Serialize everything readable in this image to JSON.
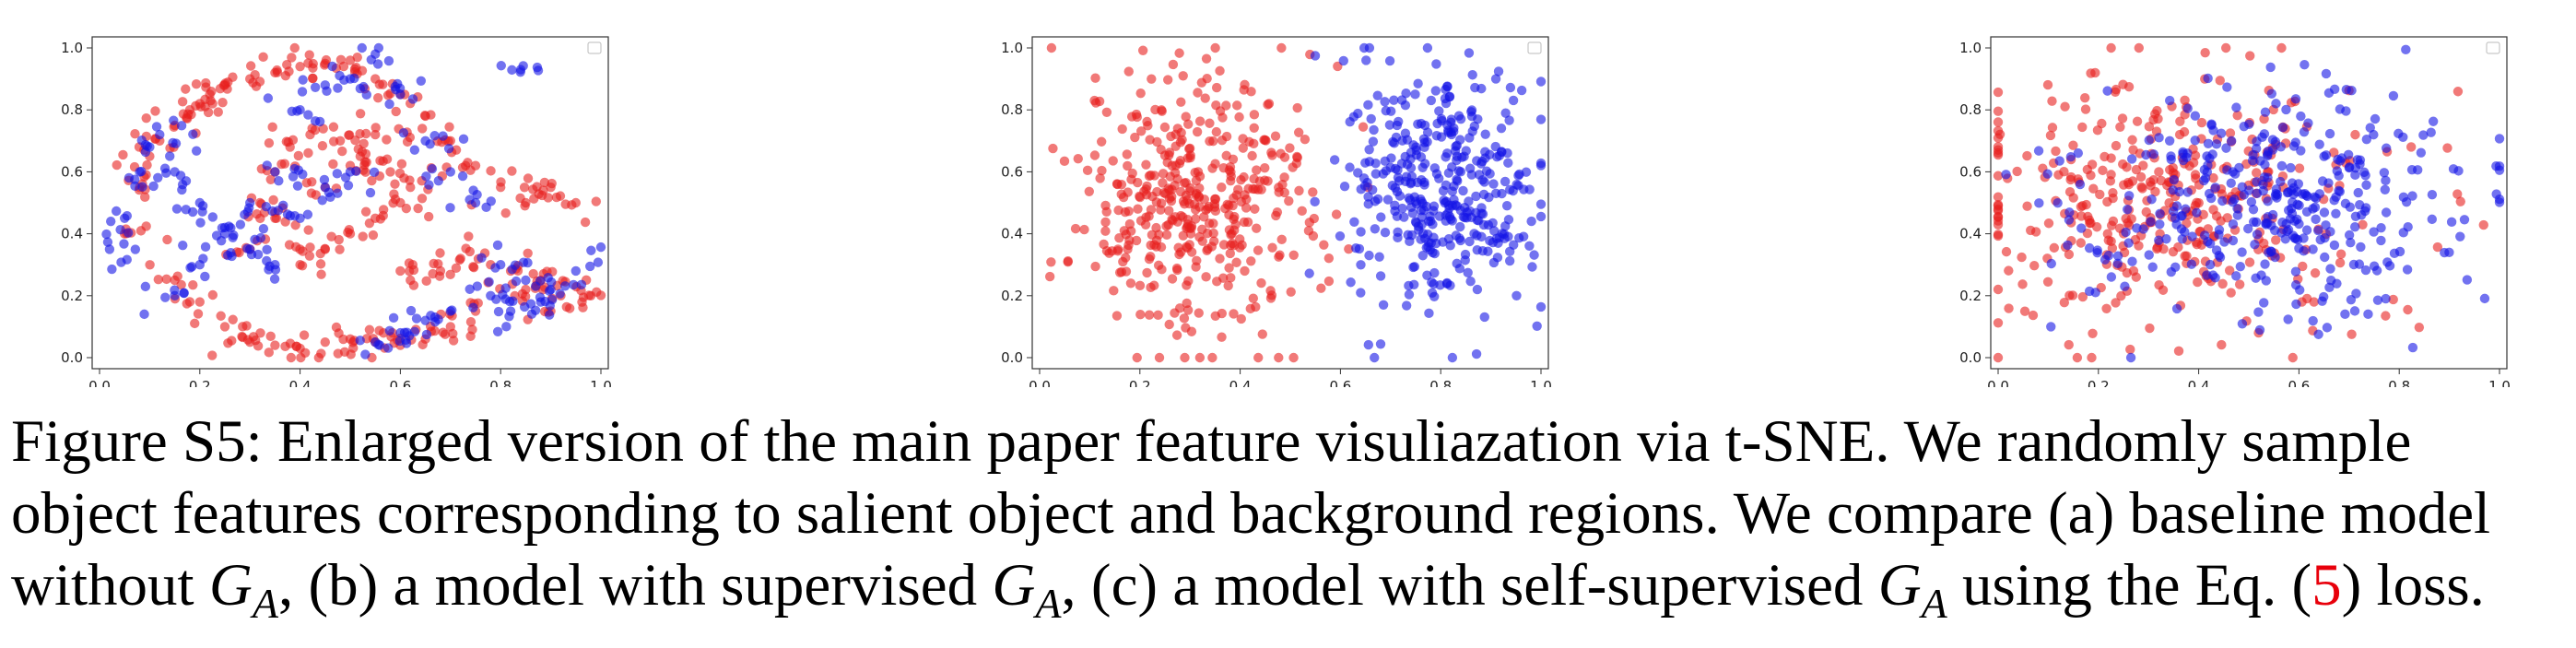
{
  "caption": {
    "label": "Figure S5:",
    "line1_rest": "Enlarged version of the main paper feature visuliazation via t-SNE. We randomly sample",
    "line2": "object features corresponding to salient object and background regions. We compare (a) baseline model",
    "line3_a": "without",
    "line3_b": ", (b) a model with supervised",
    "line3_c": ", (c) a model with self-supervised",
    "line3_d": "using the Eq. (",
    "line3_ref": "5",
    "line3_e": ") loss.",
    "symbol_main": "G",
    "symbol_sub": "A"
  },
  "colors": {
    "object": "#e8201e",
    "background": "#1414e6"
  },
  "chart_data": [
    {
      "type": "scatter",
      "panel": "(a)",
      "xlim": [
        0.0,
        1.0
      ],
      "ylim": [
        0.0,
        1.0
      ],
      "xticks": [
        "0.0",
        "0.2",
        "0.4",
        "0.6",
        "0.8",
        "1.0"
      ],
      "yticks": [
        "0.0",
        "0.2",
        "0.4",
        "0.6",
        "0.8",
        "1.0"
      ],
      "legend": "top-right (empty)",
      "series": [
        {
          "color": "#e8201e",
          "x": [
            0.05,
            0.08,
            0.1,
            0.12,
            0.15,
            0.18,
            0.2,
            0.22,
            0.25,
            0.3,
            0.35,
            0.4,
            0.45,
            0.5,
            0.55,
            0.6,
            0.65,
            0.7,
            0.75,
            0.8,
            0.85,
            0.9,
            0.95,
            0.98,
            0.3,
            0.35,
            0.4,
            0.45,
            0.5,
            0.55,
            0.6,
            0.65,
            0.7,
            0.75,
            0.25,
            0.2,
            0.15,
            0.4,
            0.45,
            0.5,
            0.55,
            0.6,
            0.62,
            0.58,
            0.52,
            0.48,
            0.42,
            0.38,
            0.35,
            0.32,
            0.88,
            0.92,
            0.9,
            0.85,
            0.82,
            0.78,
            0.72,
            0.68,
            0.62,
            0.3,
            0.35,
            0.45,
            0.5,
            0.55
          ],
          "y": [
            0.4,
            0.55,
            0.65,
            0.7,
            0.75,
            0.8,
            0.82,
            0.85,
            0.88,
            0.9,
            0.92,
            0.94,
            0.95,
            0.96,
            0.9,
            0.85,
            0.78,
            0.7,
            0.62,
            0.55,
            0.5,
            0.55,
            0.5,
            0.2,
            0.05,
            0.04,
            0.03,
            0.05,
            0.06,
            0.05,
            0.04,
            0.06,
            0.1,
            0.15,
            0.1,
            0.18,
            0.25,
            0.3,
            0.35,
            0.4,
            0.45,
            0.5,
            0.55,
            0.6,
            0.65,
            0.7,
            0.72,
            0.68,
            0.6,
            0.5,
            0.25,
            0.2,
            0.15,
            0.22,
            0.28,
            0.3,
            0.32,
            0.28,
            0.25,
            0.35,
            0.45,
            0.55,
            0.62,
            0.72
          ]
        },
        {
          "color": "#1414e6",
          "x": [
            0.02,
            0.05,
            0.08,
            0.1,
            0.12,
            0.15,
            0.2,
            0.25,
            0.3,
            0.35,
            0.4,
            0.45,
            0.5,
            0.55,
            0.6,
            0.65,
            0.7,
            0.75,
            0.8,
            0.85,
            0.9,
            0.95,
            0.88,
            0.82,
            0.78,
            0.5,
            0.45,
            0.4,
            0.35,
            0.3,
            0.25,
            0.2,
            0.15,
            0.55,
            0.6,
            0.65,
            0.7,
            0.84
          ],
          "y": [
            0.35,
            0.45,
            0.6,
            0.68,
            0.72,
            0.6,
            0.5,
            0.42,
            0.35,
            0.3,
            0.45,
            0.55,
            0.6,
            0.98,
            0.85,
            0.7,
            0.6,
            0.5,
            0.3,
            0.25,
            0.22,
            0.28,
            0.18,
            0.15,
            0.2,
            0.9,
            0.88,
            0.8,
            0.6,
            0.5,
            0.4,
            0.3,
            0.2,
            0.05,
            0.08,
            0.12,
            0.15,
            0.93
          ]
        }
      ]
    },
    {
      "type": "scatter",
      "panel": "(b)",
      "xlim": [
        0.0,
        1.0
      ],
      "ylim": [
        0.0,
        1.0
      ],
      "xticks": [
        "0.0",
        "0.2",
        "0.4",
        "0.6",
        "0.8",
        "1.0"
      ],
      "yticks": [
        "0.0",
        "0.2",
        "0.4",
        "0.6",
        "0.8",
        "1.0"
      ],
      "legend": "top-right (empty)",
      "series": [
        {
          "color": "#e8201e",
          "cx": 0.3,
          "cy": 0.5,
          "sx": 0.12,
          "sy": 0.22,
          "n": 420
        },
        {
          "color": "#1414e6",
          "cx": 0.8,
          "cy": 0.55,
          "sx": 0.1,
          "sy": 0.2,
          "n": 380
        }
      ]
    },
    {
      "type": "scatter",
      "panel": "(c)",
      "xlim": [
        0.0,
        1.0
      ],
      "ylim": [
        0.0,
        1.0
      ],
      "xticks": [
        "0.0",
        "0.2",
        "0.4",
        "0.6",
        "0.8",
        "1.0"
      ],
      "yticks": [
        "0.0",
        "0.2",
        "0.4",
        "0.6",
        "0.8",
        "1.0"
      ],
      "legend": "top-right (empty)",
      "series": [
        {
          "color": "#e8201e",
          "cx": 0.35,
          "cy": 0.5,
          "sx": 0.2,
          "sy": 0.22,
          "n": 380
        },
        {
          "color": "#1414e6",
          "cx": 0.55,
          "cy": 0.5,
          "sx": 0.2,
          "sy": 0.2,
          "n": 380
        }
      ]
    }
  ]
}
